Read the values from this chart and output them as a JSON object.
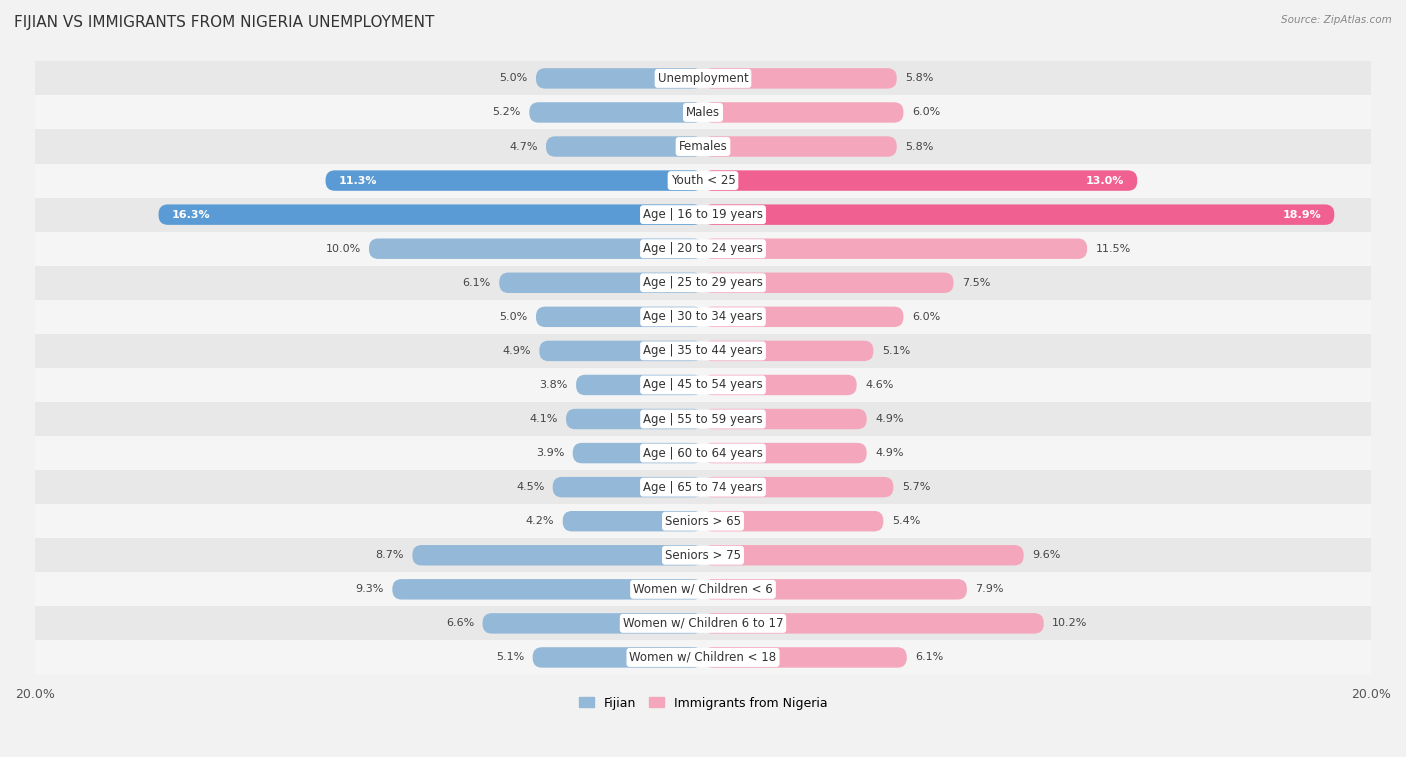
{
  "title": "FIJIAN VS IMMIGRANTS FROM NIGERIA UNEMPLOYMENT",
  "source": "Source: ZipAtlas.com",
  "categories": [
    "Unemployment",
    "Males",
    "Females",
    "Youth < 25",
    "Age | 16 to 19 years",
    "Age | 20 to 24 years",
    "Age | 25 to 29 years",
    "Age | 30 to 34 years",
    "Age | 35 to 44 years",
    "Age | 45 to 54 years",
    "Age | 55 to 59 years",
    "Age | 60 to 64 years",
    "Age | 65 to 74 years",
    "Seniors > 65",
    "Seniors > 75",
    "Women w/ Children < 6",
    "Women w/ Children 6 to 17",
    "Women w/ Children < 18"
  ],
  "fijian_values": [
    5.0,
    5.2,
    4.7,
    11.3,
    16.3,
    10.0,
    6.1,
    5.0,
    4.9,
    3.8,
    4.1,
    3.9,
    4.5,
    4.2,
    8.7,
    9.3,
    6.6,
    5.1
  ],
  "nigeria_values": [
    5.8,
    6.0,
    5.8,
    13.0,
    18.9,
    11.5,
    7.5,
    6.0,
    5.1,
    4.6,
    4.9,
    4.9,
    5.7,
    5.4,
    9.6,
    7.9,
    10.2,
    6.1
  ],
  "fijian_color": "#93b8d8",
  "nigeria_color": "#f4a7bc",
  "fijian_highlight_color": "#5b9bd5",
  "nigeria_highlight_color": "#f06090",
  "highlight_indices": [
    3,
    4
  ],
  "axis_limit": 20.0,
  "bg_color": "#f2f2f2",
  "row_color_even": "#e8e8e8",
  "row_color_odd": "#f5f5f5",
  "legend_fijian": "Fijian",
  "legend_nigeria": "Immigrants from Nigeria",
  "title_fontsize": 11,
  "label_fontsize": 8.5,
  "value_fontsize": 8.0
}
